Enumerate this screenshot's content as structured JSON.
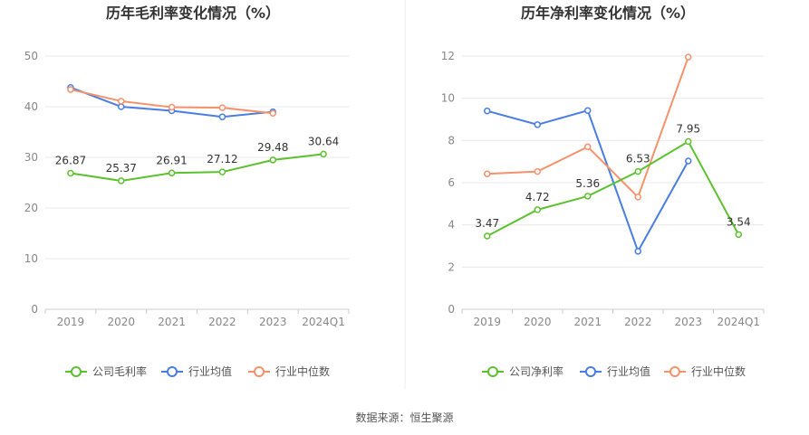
{
  "source": "数据来源：恒生聚源",
  "colors": {
    "company": "#5cc12e",
    "industry_avg": "#4a7de2",
    "industry_median": "#f5926b"
  },
  "chart_data": [
    {
      "type": "line",
      "title": "历年毛利率变化情况（%）",
      "categories": [
        "2019",
        "2020",
        "2021",
        "2022",
        "2023",
        "2024Q1"
      ],
      "ylim": [
        0,
        50
      ],
      "yticks": [
        "0",
        "10",
        "20",
        "30",
        "40",
        "50"
      ],
      "grid": true,
      "legend_position": "bottom",
      "series": [
        {
          "name": "公司毛利率",
          "color": "#5cc12e",
          "values": [
            26.87,
            25.37,
            26.91,
            27.12,
            29.48,
            30.64
          ],
          "labels": [
            "26.87",
            "25.37",
            "26.91",
            "27.12",
            "29.48",
            "30.64"
          ]
        },
        {
          "name": "行业均值",
          "color": "#4a7de2",
          "values": [
            43.8,
            40.0,
            39.2,
            38.0,
            39.0,
            null
          ]
        },
        {
          "name": "行业中位数",
          "color": "#f5926b",
          "values": [
            43.4,
            41.1,
            39.9,
            39.8,
            38.7,
            null
          ]
        }
      ]
    },
    {
      "type": "line",
      "title": "历年净利率变化情况（%）",
      "categories": [
        "2019",
        "2020",
        "2021",
        "2022",
        "2023",
        "2024Q1"
      ],
      "ylim": [
        0,
        12
      ],
      "yticks": [
        "0",
        "2",
        "4",
        "6",
        "8",
        "10",
        "12"
      ],
      "grid": true,
      "legend_position": "bottom",
      "series": [
        {
          "name": "公司净利率",
          "color": "#5cc12e",
          "values": [
            3.47,
            4.72,
            5.36,
            6.53,
            7.95,
            3.54
          ],
          "labels": [
            "3.47",
            "4.72",
            "5.36",
            "6.53",
            "7.95",
            "3.54"
          ]
        },
        {
          "name": "行业均值",
          "color": "#4a7de2",
          "values": [
            9.4,
            8.75,
            9.42,
            2.75,
            7.03,
            null
          ]
        },
        {
          "name": "行业中位数",
          "color": "#f5926b",
          "values": [
            6.42,
            6.53,
            7.7,
            5.32,
            11.95,
            null
          ]
        }
      ]
    }
  ]
}
